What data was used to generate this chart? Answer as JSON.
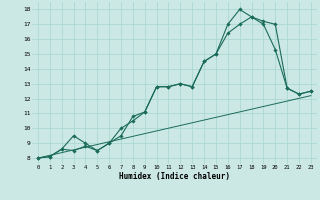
{
  "xlabel": "Humidex (Indice chaleur)",
  "background_color": "#cce8e4",
  "grid_color": "#aad8d4",
  "line_color": "#1a6b5a",
  "xlim": [
    -0.5,
    23.5
  ],
  "ylim": [
    7.6,
    18.5
  ],
  "xticks": [
    0,
    1,
    2,
    3,
    4,
    5,
    6,
    7,
    8,
    9,
    10,
    11,
    12,
    13,
    14,
    15,
    16,
    17,
    18,
    19,
    20,
    21,
    22,
    23
  ],
  "yticks": [
    8,
    9,
    10,
    11,
    12,
    13,
    14,
    15,
    16,
    17,
    18
  ],
  "series1_x": [
    0,
    1,
    2,
    3,
    4,
    5,
    6,
    7,
    8,
    9,
    10,
    11,
    12,
    13,
    14,
    15,
    16,
    17,
    18,
    19,
    20,
    21,
    22,
    23
  ],
  "series1_y": [
    8.0,
    8.1,
    8.6,
    9.5,
    9.0,
    8.5,
    9.0,
    10.0,
    10.5,
    11.1,
    12.8,
    12.8,
    13.0,
    12.8,
    14.5,
    15.0,
    17.0,
    18.0,
    17.5,
    17.0,
    15.3,
    12.7,
    12.3,
    12.5
  ],
  "series2_x": [
    0,
    1,
    2,
    3,
    4,
    5,
    6,
    7,
    8,
    9,
    10,
    11,
    12,
    13,
    14,
    15,
    16,
    17,
    18,
    19,
    20,
    21,
    22,
    23
  ],
  "series2_y": [
    8.0,
    8.1,
    8.6,
    8.5,
    8.8,
    8.5,
    9.0,
    9.5,
    10.8,
    11.1,
    12.8,
    12.8,
    13.0,
    12.8,
    14.5,
    15.0,
    16.4,
    17.0,
    17.5,
    17.2,
    17.0,
    12.7,
    12.3,
    12.5
  ],
  "series3_x": [
    0,
    23
  ],
  "series3_y": [
    8.0,
    12.2
  ]
}
